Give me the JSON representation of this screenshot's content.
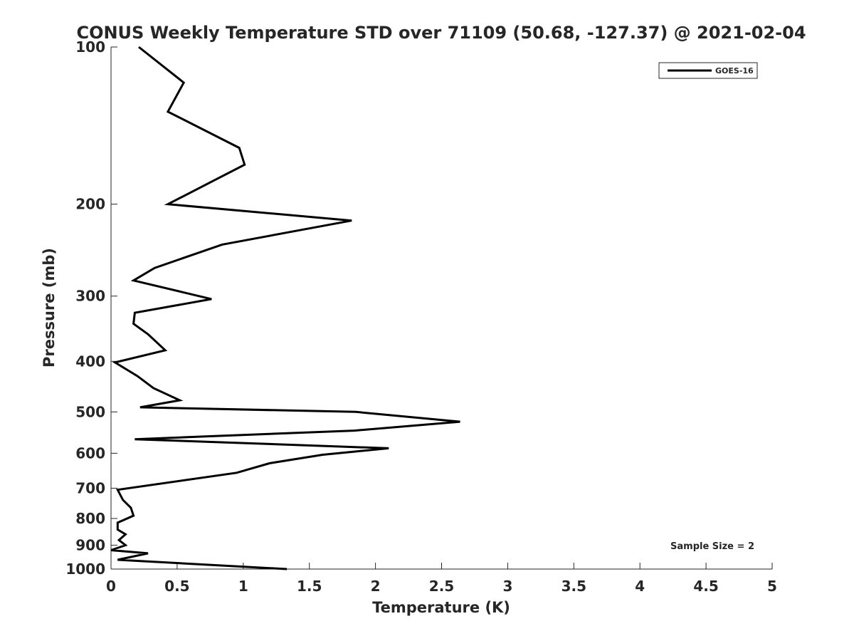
{
  "chart_data": {
    "type": "line",
    "title": "CONUS Weekly Temperature STD over 71109 (50.68, -127.37) @ 2021-02-04",
    "xlabel": "Temperature (K)",
    "ylabel": "Pressure (mb)",
    "xlim": [
      0,
      5
    ],
    "ylim": [
      100,
      1000
    ],
    "yscale": "log",
    "y_reversed": true,
    "xticks": [
      "0",
      "0.5",
      "1",
      "1.5",
      "2",
      "2.5",
      "3",
      "3.5",
      "4",
      "4.5",
      "5"
    ],
    "yticks": [
      "100",
      "200",
      "300",
      "400",
      "500",
      "600",
      "700",
      "800",
      "900",
      "1000"
    ],
    "grid": false,
    "legend_position": "top-right",
    "annotation": "Sample Size = 2",
    "series": [
      {
        "name": "GOES-16",
        "color": "#000000",
        "x": [
          0.21,
          0.55,
          0.43,
          0.97,
          1.01,
          0.43,
          1.82,
          0.84,
          0.33,
          0.17,
          0.76,
          0.18,
          0.17,
          0.28,
          0.41,
          0.03,
          0.2,
          0.32,
          0.52,
          0.22,
          1.85,
          2.64,
          1.84,
          0.18,
          2.1,
          1.6,
          1.2,
          0.95,
          0.05,
          0.09,
          0.15,
          0.17,
          0.05,
          0.05,
          0.11,
          0.06,
          0.11,
          0.0,
          0.28,
          0.05,
          1.33
        ],
        "y": [
          100,
          117,
          133,
          156,
          168,
          200,
          215,
          239,
          265,
          280,
          304,
          323,
          339,
          355,
          381,
          402,
          427,
          450,
          475,
          490,
          500,
          522,
          543,
          564,
          587,
          604,
          627,
          654,
          705,
          737,
          763,
          790,
          815,
          840,
          858,
          880,
          900,
          920,
          933,
          960,
          1000
        ]
      }
    ]
  }
}
